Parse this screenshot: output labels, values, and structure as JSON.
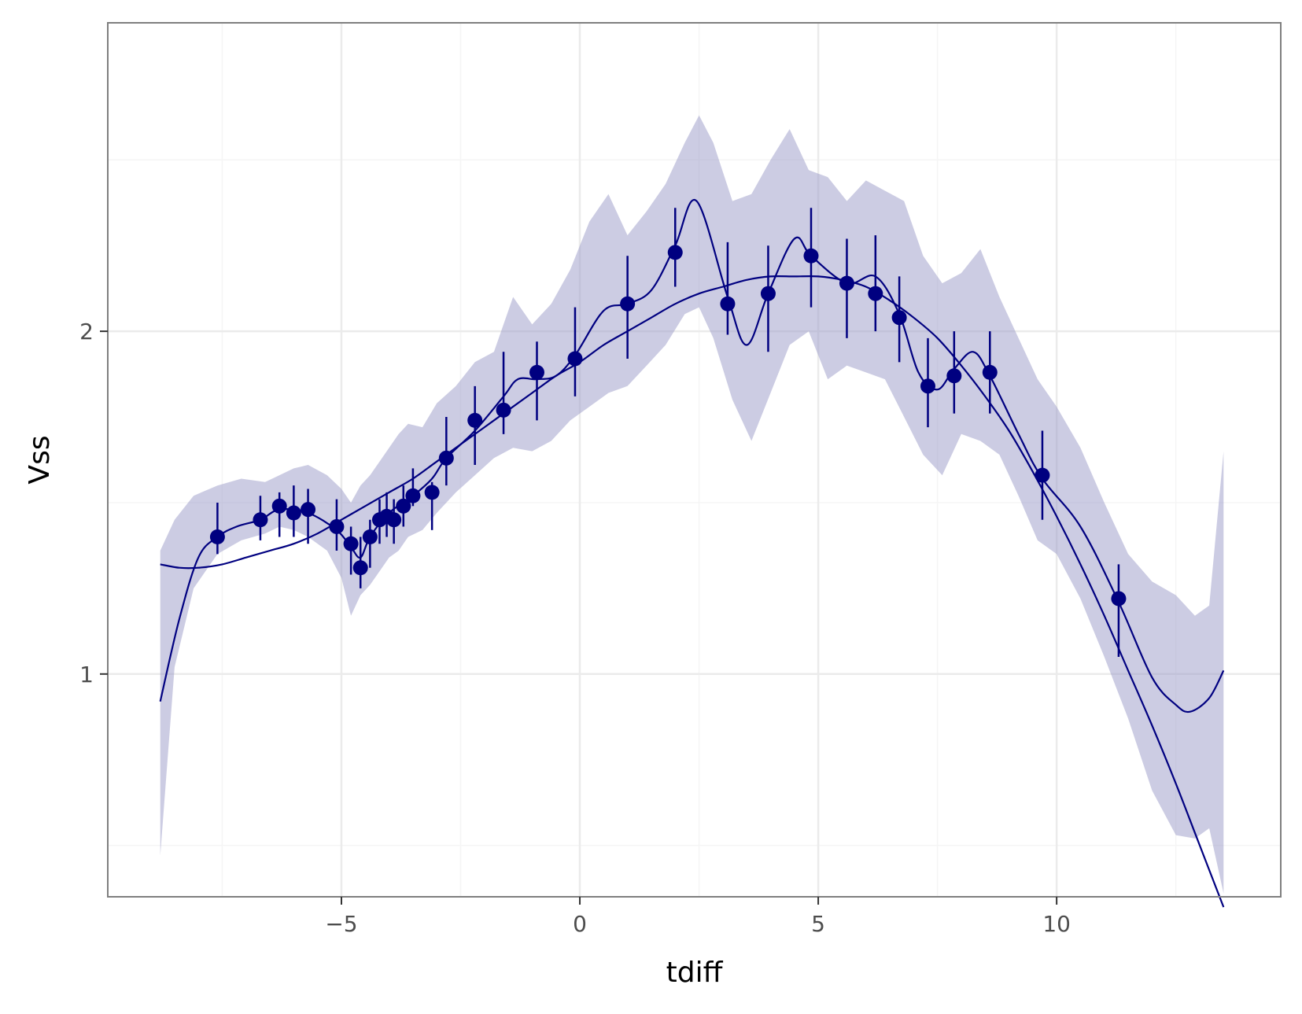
{
  "chart_data": {
    "type": "scatter",
    "title": "",
    "xlabel": "tdiff",
    "ylabel": "Vss",
    "xlim": [
      -9.9,
      14.7
    ],
    "ylim": [
      0.35,
      2.9
    ],
    "x_ticks": [
      -5,
      0,
      5,
      10
    ],
    "x_tick_labels": [
      "−5",
      "0",
      "5",
      "10"
    ],
    "y_ticks": [
      1,
      2
    ],
    "y_tick_labels": [
      "1",
      "2"
    ],
    "grid": true,
    "legend": "none",
    "colors": {
      "points": "#000080",
      "ribbon": "#9a9ac8",
      "grid": "#ebebeb",
      "panel_border": "#7f7f7f"
    },
    "points": [
      {
        "x": -7.6,
        "y": 1.4,
        "ymin": 1.35,
        "ymax": 1.5
      },
      {
        "x": -6.7,
        "y": 1.45,
        "ymin": 1.39,
        "ymax": 1.52
      },
      {
        "x": -6.3,
        "y": 1.49,
        "ymin": 1.4,
        "ymax": 1.53
      },
      {
        "x": -6.0,
        "y": 1.47,
        "ymin": 1.4,
        "ymax": 1.55
      },
      {
        "x": -5.7,
        "y": 1.48,
        "ymin": 1.38,
        "ymax": 1.54
      },
      {
        "x": -5.1,
        "y": 1.43,
        "ymin": 1.36,
        "ymax": 1.51
      },
      {
        "x": -4.8,
        "y": 1.38,
        "ymin": 1.29,
        "ymax": 1.43
      },
      {
        "x": -4.6,
        "y": 1.31,
        "ymin": 1.25,
        "ymax": 1.4
      },
      {
        "x": -4.4,
        "y": 1.4,
        "ymin": 1.31,
        "ymax": 1.45
      },
      {
        "x": -4.2,
        "y": 1.45,
        "ymin": 1.38,
        "ymax": 1.51
      },
      {
        "x": -4.05,
        "y": 1.46,
        "ymin": 1.4,
        "ymax": 1.53
      },
      {
        "x": -3.9,
        "y": 1.45,
        "ymin": 1.38,
        "ymax": 1.51
      },
      {
        "x": -3.7,
        "y": 1.49,
        "ymin": 1.43,
        "ymax": 1.55
      },
      {
        "x": -3.5,
        "y": 1.52,
        "ymin": 1.49,
        "ymax": 1.6
      },
      {
        "x": -3.1,
        "y": 1.53,
        "ymin": 1.42,
        "ymax": 1.56
      },
      {
        "x": -2.8,
        "y": 1.63,
        "ymin": 1.55,
        "ymax": 1.75
      },
      {
        "x": -2.2,
        "y": 1.74,
        "ymin": 1.61,
        "ymax": 1.84
      },
      {
        "x": -1.6,
        "y": 1.77,
        "ymin": 1.7,
        "ymax": 1.94
      },
      {
        "x": -0.9,
        "y": 1.88,
        "ymin": 1.74,
        "ymax": 1.97
      },
      {
        "x": -0.1,
        "y": 1.92,
        "ymin": 1.81,
        "ymax": 2.07
      },
      {
        "x": 1.0,
        "y": 2.08,
        "ymin": 1.92,
        "ymax": 2.22
      },
      {
        "x": 2.0,
        "y": 2.23,
        "ymin": 2.13,
        "ymax": 2.36
      },
      {
        "x": 3.1,
        "y": 2.08,
        "ymin": 1.99,
        "ymax": 2.26
      },
      {
        "x": 3.95,
        "y": 2.11,
        "ymin": 1.94,
        "ymax": 2.25
      },
      {
        "x": 4.85,
        "y": 2.22,
        "ymin": 2.07,
        "ymax": 2.36
      },
      {
        "x": 5.6,
        "y": 2.14,
        "ymin": 1.98,
        "ymax": 2.27
      },
      {
        "x": 6.2,
        "y": 2.11,
        "ymin": 2.0,
        "ymax": 2.28
      },
      {
        "x": 6.7,
        "y": 2.04,
        "ymin": 1.91,
        "ymax": 2.16
      },
      {
        "x": 7.3,
        "y": 1.84,
        "ymin": 1.72,
        "ymax": 1.98
      },
      {
        "x": 7.85,
        "y": 1.87,
        "ymin": 1.76,
        "ymax": 2.0
      },
      {
        "x": 8.6,
        "y": 1.88,
        "ymin": 1.76,
        "ymax": 2.0
      },
      {
        "x": 9.7,
        "y": 1.58,
        "ymin": 1.45,
        "ymax": 1.71
      },
      {
        "x": 11.3,
        "y": 1.22,
        "ymin": 1.05,
        "ymax": 1.32
      }
    ],
    "smooth_curve": {
      "x": [
        -8.8,
        -8.4,
        -8.0,
        -7.5,
        -7.0,
        -6.5,
        -6.0,
        -5.5,
        -5.0,
        -4.5,
        -4.0,
        -3.5,
        -3.0,
        -2.5,
        -2.0,
        -1.5,
        -1.0,
        -0.5,
        0.0,
        0.5,
        1.0,
        1.5,
        2.0,
        2.5,
        3.0,
        3.5,
        4.0,
        4.5,
        5.0,
        5.5,
        6.0,
        6.5,
        7.0,
        7.5,
        8.0,
        8.5,
        9.0,
        9.5,
        10.0,
        10.5,
        11.0,
        11.5,
        12.0,
        12.5,
        13.0,
        13.5
      ],
      "y": [
        1.32,
        1.31,
        1.31,
        1.32,
        1.34,
        1.36,
        1.38,
        1.41,
        1.45,
        1.49,
        1.53,
        1.57,
        1.62,
        1.67,
        1.72,
        1.77,
        1.82,
        1.87,
        1.91,
        1.96,
        2.0,
        2.04,
        2.08,
        2.11,
        2.13,
        2.15,
        2.16,
        2.16,
        2.16,
        2.15,
        2.13,
        2.09,
        2.04,
        1.98,
        1.9,
        1.81,
        1.71,
        1.59,
        1.46,
        1.32,
        1.17,
        1.01,
        0.85,
        0.68,
        0.5,
        0.32
      ]
    },
    "interp_curve": {
      "x": [
        -8.8,
        -8.4,
        -8.0,
        -7.6,
        -7.2,
        -6.7,
        -6.3,
        -5.7,
        -5.1,
        -4.8,
        -4.6,
        -4.4,
        -4.0,
        -3.5,
        -3.1,
        -2.8,
        -2.2,
        -1.6,
        -1.3,
        -0.9,
        -0.5,
        -0.1,
        0.5,
        1.0,
        1.5,
        2.0,
        2.45,
        3.1,
        3.5,
        3.95,
        4.5,
        4.85,
        5.6,
        6.2,
        6.7,
        7.1,
        7.5,
        7.85,
        8.25,
        8.6,
        9.2,
        9.7,
        10.5,
        11.3,
        12.0,
        12.5,
        12.8,
        13.2,
        13.5
      ],
      "y": [
        0.92,
        1.16,
        1.34,
        1.4,
        1.43,
        1.45,
        1.48,
        1.47,
        1.42,
        1.37,
        1.34,
        1.4,
        1.47,
        1.52,
        1.57,
        1.63,
        1.71,
        1.81,
        1.86,
        1.86,
        1.87,
        1.93,
        2.06,
        2.08,
        2.12,
        2.25,
        2.38,
        2.1,
        1.96,
        2.11,
        2.27,
        2.22,
        2.14,
        2.16,
        2.05,
        1.88,
        1.83,
        1.89,
        1.94,
        1.87,
        1.7,
        1.57,
        1.43,
        1.21,
        0.99,
        0.91,
        0.89,
        0.93,
        1.01
      ]
    },
    "ribbon": {
      "x": [
        -8.8,
        -8.5,
        -8.1,
        -7.6,
        -7.1,
        -6.6,
        -6.3,
        -6.0,
        -5.7,
        -5.3,
        -5.0,
        -4.8,
        -4.6,
        -4.4,
        -4.2,
        -4.0,
        -3.8,
        -3.6,
        -3.3,
        -3.0,
        -2.6,
        -2.2,
        -1.8,
        -1.4,
        -1.0,
        -0.6,
        -0.2,
        0.2,
        0.6,
        1.0,
        1.4,
        1.8,
        2.2,
        2.5,
        2.8,
        3.2,
        3.6,
        4.0,
        4.4,
        4.8,
        5.2,
        5.6,
        6.0,
        6.4,
        6.8,
        7.2,
        7.6,
        8.0,
        8.4,
        8.8,
        9.2,
        9.6,
        10.0,
        10.5,
        11.0,
        11.5,
        12.0,
        12.5,
        12.9,
        13.2,
        13.5
      ],
      "ymin": [
        0.47,
        1.02,
        1.25,
        1.35,
        1.39,
        1.41,
        1.43,
        1.42,
        1.4,
        1.36,
        1.28,
        1.17,
        1.23,
        1.26,
        1.3,
        1.34,
        1.36,
        1.4,
        1.42,
        1.47,
        1.53,
        1.58,
        1.63,
        1.66,
        1.65,
        1.68,
        1.74,
        1.78,
        1.82,
        1.84,
        1.9,
        1.96,
        2.05,
        2.07,
        1.98,
        1.8,
        1.68,
        1.82,
        1.96,
        2.0,
        1.86,
        1.9,
        1.88,
        1.86,
        1.75,
        1.64,
        1.58,
        1.7,
        1.68,
        1.64,
        1.52,
        1.39,
        1.35,
        1.22,
        1.05,
        0.87,
        0.66,
        0.53,
        0.52,
        0.55,
        0.36
      ],
      "ymax": [
        1.36,
        1.45,
        1.52,
        1.55,
        1.57,
        1.56,
        1.58,
        1.6,
        1.61,
        1.58,
        1.54,
        1.5,
        1.55,
        1.58,
        1.62,
        1.66,
        1.7,
        1.73,
        1.72,
        1.79,
        1.84,
        1.91,
        1.94,
        2.1,
        2.02,
        2.08,
        2.18,
        2.32,
        2.4,
        2.28,
        2.35,
        2.43,
        2.55,
        2.63,
        2.55,
        2.38,
        2.4,
        2.5,
        2.59,
        2.47,
        2.45,
        2.38,
        2.44,
        2.41,
        2.38,
        2.22,
        2.14,
        2.17,
        2.24,
        2.1,
        1.98,
        1.86,
        1.78,
        1.66,
        1.5,
        1.35,
        1.27,
        1.23,
        1.17,
        1.2,
        1.65
      ]
    }
  }
}
